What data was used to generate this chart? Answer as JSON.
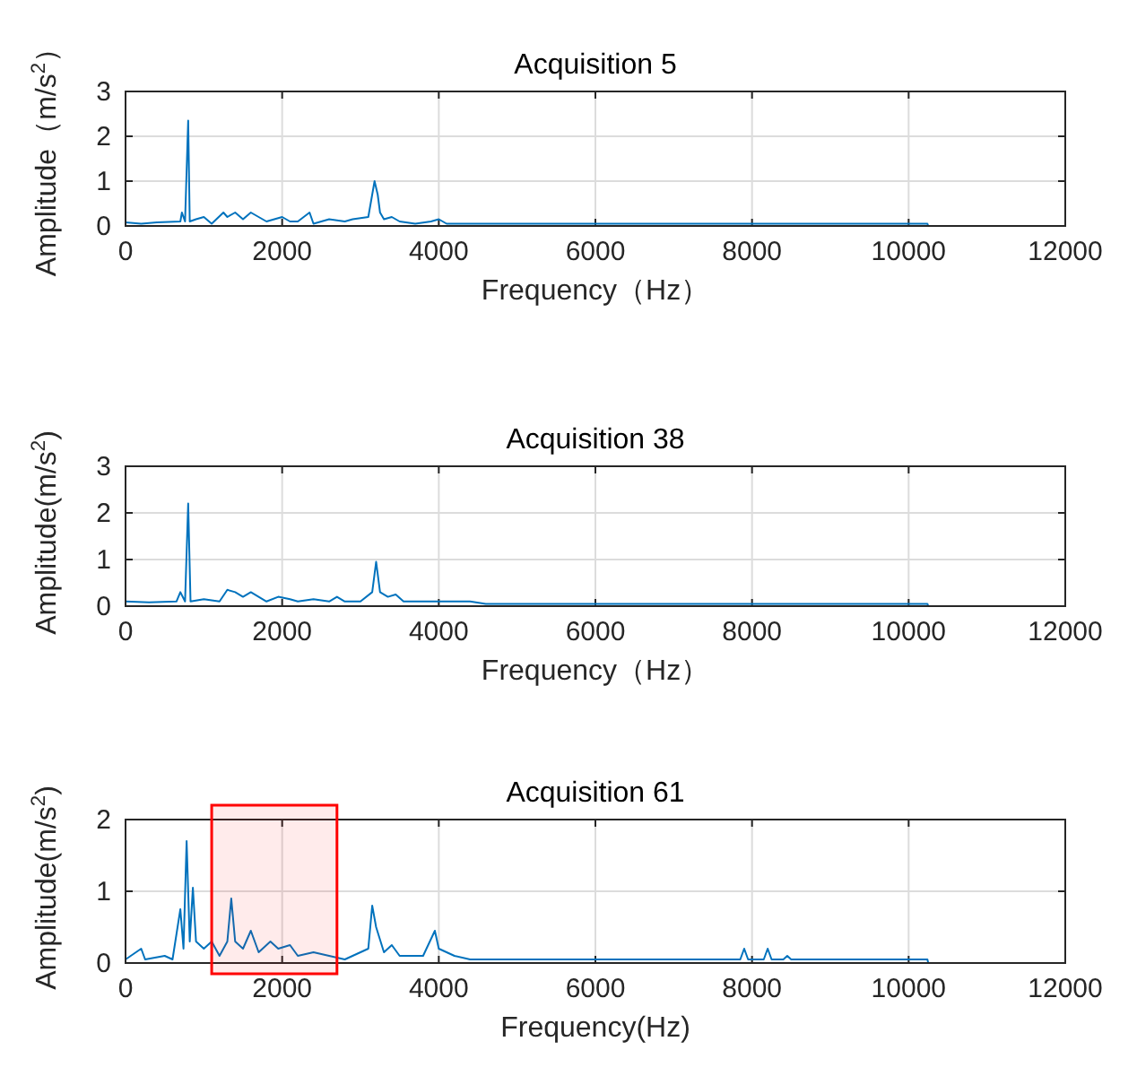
{
  "chart_data": [
    {
      "type": "line",
      "title": "Acquisition 5",
      "xlabel": "Frequency（Hz）",
      "ylabel": "Amplitude（m/s$^{2}$）",
      "xlim": [
        0,
        12000
      ],
      "xticks": [
        0,
        2000,
        4000,
        6000,
        8000,
        10000,
        12000
      ],
      "ylim": [
        0,
        3
      ],
      "yticks": [
        0,
        1,
        2,
        3
      ],
      "grid": true,
      "series": [
        {
          "color": "#0072bd",
          "x": [
            0,
            200,
            400,
            700,
            720,
            760,
            800,
            820,
            900,
            1000,
            1100,
            1250,
            1300,
            1400,
            1500,
            1600,
            1700,
            1800,
            1900,
            2000,
            2100,
            2200,
            2350,
            2400,
            2600,
            2800,
            2900,
            3100,
            3180,
            3220,
            3250,
            3300,
            3400,
            3500,
            3700,
            3900,
            4000,
            4100,
            10240,
            10250
          ],
          "values": [
            0.08,
            0.05,
            0.08,
            0.1,
            0.3,
            0.1,
            2.35,
            0.1,
            0.15,
            0.2,
            0.05,
            0.3,
            0.2,
            0.3,
            0.15,
            0.3,
            0.2,
            0.1,
            0.15,
            0.2,
            0.1,
            0.1,
            0.3,
            0.05,
            0.15,
            0.1,
            0.15,
            0.2,
            1.0,
            0.7,
            0.3,
            0.15,
            0.2,
            0.1,
            0.05,
            0.1,
            0.15,
            0.05,
            0.05,
            0
          ]
        }
      ]
    },
    {
      "type": "line",
      "title": "Acquisition 38",
      "xlabel": "Frequency（Hz）",
      "ylabel": "Amplitude(m/s$^{2}$)",
      "xlim": [
        0,
        12000
      ],
      "xticks": [
        0,
        2000,
        4000,
        6000,
        8000,
        10000,
        12000
      ],
      "ylim": [
        0,
        3
      ],
      "yticks": [
        0,
        1,
        2,
        3
      ],
      "grid": true,
      "series": [
        {
          "color": "#0072bd",
          "x": [
            0,
            300,
            650,
            700,
            760,
            800,
            830,
            1000,
            1200,
            1300,
            1400,
            1500,
            1600,
            1700,
            1800,
            1950,
            2100,
            2200,
            2400,
            2600,
            2700,
            2800,
            3000,
            3150,
            3200,
            3250,
            3350,
            3450,
            3550,
            4100,
            4400,
            4600,
            10240,
            10250
          ],
          "values": [
            0.1,
            0.08,
            0.1,
            0.3,
            0.1,
            2.2,
            0.1,
            0.15,
            0.1,
            0.35,
            0.3,
            0.2,
            0.3,
            0.2,
            0.1,
            0.2,
            0.15,
            0.1,
            0.15,
            0.1,
            0.2,
            0.1,
            0.1,
            0.3,
            0.95,
            0.3,
            0.2,
            0.25,
            0.1,
            0.1,
            0.1,
            0.05,
            0.05,
            0
          ]
        }
      ]
    },
    {
      "type": "line",
      "title": "Acquisition 61",
      "xlabel": "Frequency(Hz)",
      "ylabel": "Amplitude(m/s$^{2}$)",
      "xlim": [
        0,
        12000
      ],
      "xticks": [
        0,
        2000,
        4000,
        6000,
        8000,
        10000,
        12000
      ],
      "ylim": [
        0,
        2
      ],
      "yticks": [
        0,
        1,
        2
      ],
      "grid": true,
      "bands": [
        {
          "axis": "x",
          "from": 1100,
          "to": 2700,
          "color": "#ff0000"
        }
      ],
      "series": [
        {
          "color": "#0072bd",
          "x": [
            0,
            200,
            250,
            500,
            600,
            700,
            740,
            780,
            820,
            860,
            900,
            1000,
            1100,
            1200,
            1300,
            1350,
            1400,
            1500,
            1600,
            1700,
            1850,
            1950,
            2100,
            2200,
            2400,
            2600,
            2800,
            3100,
            3150,
            3200,
            3300,
            3400,
            3500,
            3800,
            3950,
            4000,
            4200,
            4400,
            7850,
            7900,
            7950,
            8150,
            8200,
            8250,
            8400,
            8450,
            8500,
            10240,
            10250
          ],
          "values": [
            0.05,
            0.2,
            0.05,
            0.1,
            0.05,
            0.75,
            0.2,
            1.7,
            0.3,
            1.05,
            0.3,
            0.2,
            0.3,
            0.1,
            0.3,
            0.9,
            0.3,
            0.2,
            0.45,
            0.15,
            0.3,
            0.2,
            0.25,
            0.1,
            0.15,
            0.1,
            0.05,
            0.2,
            0.8,
            0.5,
            0.15,
            0.25,
            0.1,
            0.1,
            0.45,
            0.2,
            0.1,
            0.05,
            0.05,
            0.2,
            0.05,
            0.05,
            0.2,
            0.05,
            0.05,
            0.1,
            0.05,
            0.05,
            0
          ]
        }
      ]
    }
  ]
}
